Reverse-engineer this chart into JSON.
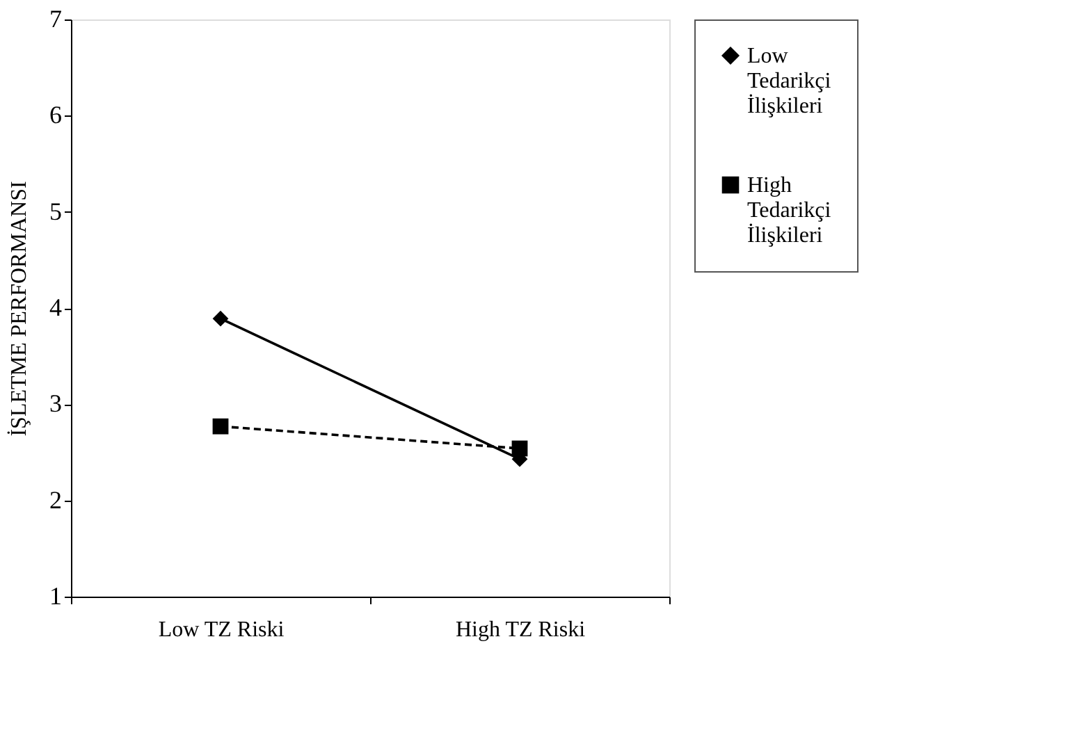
{
  "chart_data": {
    "type": "line",
    "ylabel": "İŞLETME PERFORMANSI",
    "categories": [
      "Low TZ Riski",
      "High TZ Riski"
    ],
    "series": [
      {
        "name": "Low Tedarikçi İlişkileri",
        "color": "#000000",
        "values": [
          3.89,
          2.43
        ],
        "marker": "diamond",
        "line_style": "solid"
      },
      {
        "name": "High Tedarikçi İlişkileri",
        "color": "#000000",
        "values": [
          2.77,
          2.54
        ],
        "marker": "square",
        "line_style": "dashed"
      }
    ],
    "ylim": [
      1,
      7
    ],
    "yticks": [
      1,
      2,
      3,
      4,
      5,
      6,
      7
    ],
    "grid": false,
    "legend": "right"
  }
}
